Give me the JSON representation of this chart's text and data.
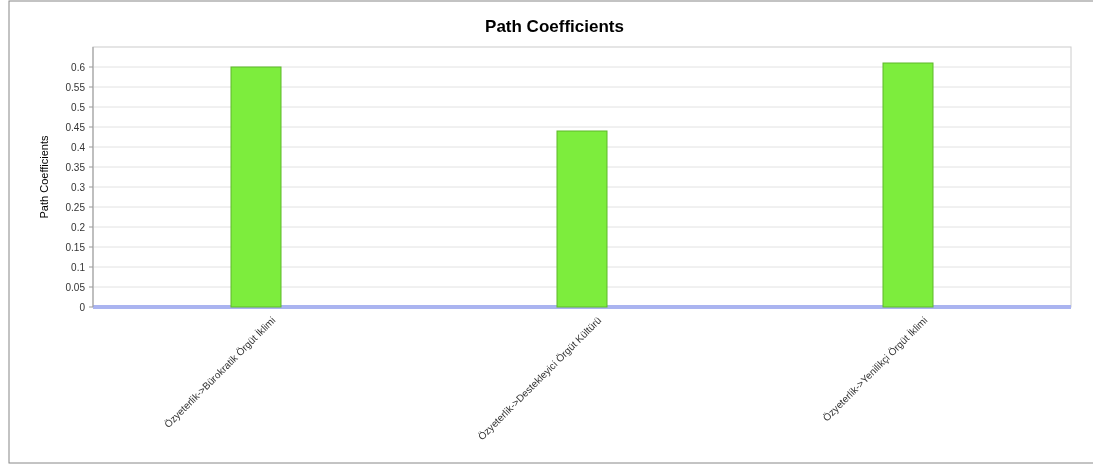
{
  "chart_data": {
    "type": "bar",
    "title": "Path Coefficients",
    "ylabel": "Path Coefficients",
    "categories": [
      "Özyeterlik->Bürokratik Örgüt İklimi",
      "Özyeterlik->Destekleyici Örgüt Kültürü",
      "Özyeterlik->Yenilikçi Örgüt İklimi"
    ],
    "values": [
      0.6,
      0.44,
      0.61
    ],
    "color": "#7ded3d",
    "ylim": [
      0,
      0.65
    ],
    "yticks": [
      0,
      0.05,
      0.1,
      0.15,
      0.2,
      0.25,
      0.3,
      0.35,
      0.4,
      0.45,
      0.5,
      0.55,
      0.6
    ],
    "grid": true
  }
}
